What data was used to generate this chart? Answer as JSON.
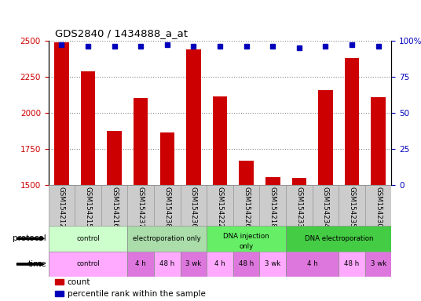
{
  "title": "GDS2840 / 1434888_a_at",
  "samples": [
    "GSM154212",
    "GSM154215",
    "GSM154216",
    "GSM154237",
    "GSM154238",
    "GSM154236",
    "GSM154222",
    "GSM154226",
    "GSM154218",
    "GSM154233",
    "GSM154234",
    "GSM154235",
    "GSM154230"
  ],
  "counts": [
    2490,
    2285,
    1875,
    2105,
    1865,
    2440,
    2115,
    1670,
    1555,
    1550,
    2160,
    2380,
    2110
  ],
  "percentile": [
    97,
    96,
    96,
    96,
    97,
    96,
    96,
    96,
    96,
    95,
    96,
    97,
    96
  ],
  "ylim_left": [
    1500,
    2500
  ],
  "ylim_right": [
    0,
    100
  ],
  "yticks_left": [
    1500,
    1750,
    2000,
    2250,
    2500
  ],
  "yticks_right": [
    0,
    25,
    50,
    75,
    100
  ],
  "bar_color": "#cc0000",
  "dot_color": "#0000bb",
  "grid_color": "#888888",
  "protocol_rows": [
    {
      "label": "control",
      "start": 0,
      "end": 3,
      "color": "#ccffcc"
    },
    {
      "label": "electroporation only",
      "start": 3,
      "end": 6,
      "color": "#aaddaa"
    },
    {
      "label": "DNA injection only",
      "start": 6,
      "end": 9,
      "color": "#66ee66"
    },
    {
      "label": "DNA electroporation",
      "start": 9,
      "end": 13,
      "color": "#44cc44"
    }
  ],
  "time_rows": [
    {
      "label": "control",
      "start": 0,
      "end": 3,
      "color": "#ffaaff"
    },
    {
      "label": "4 h",
      "start": 3,
      "end": 4,
      "color": "#dd77dd"
    },
    {
      "label": "48 h",
      "start": 4,
      "end": 5,
      "color": "#ffaaff"
    },
    {
      "label": "3 wk",
      "start": 5,
      "end": 6,
      "color": "#dd77dd"
    },
    {
      "label": "4 h",
      "start": 6,
      "end": 7,
      "color": "#ffaaff"
    },
    {
      "label": "48 h",
      "start": 7,
      "end": 8,
      "color": "#dd77dd"
    },
    {
      "label": "3 wk",
      "start": 8,
      "end": 9,
      "color": "#ffaaff"
    },
    {
      "label": "4 h",
      "start": 9,
      "end": 11,
      "color": "#dd77dd"
    },
    {
      "label": "48 h",
      "start": 11,
      "end": 12,
      "color": "#ffaaff"
    },
    {
      "label": "3 wk",
      "start": 12,
      "end": 13,
      "color": "#dd77dd"
    }
  ],
  "legend_items": [
    {
      "color": "#cc0000",
      "label": "count"
    },
    {
      "color": "#0000bb",
      "label": "percentile rank within the sample"
    }
  ],
  "sample_box_color": "#cccccc",
  "sample_box_edge": "#999999"
}
